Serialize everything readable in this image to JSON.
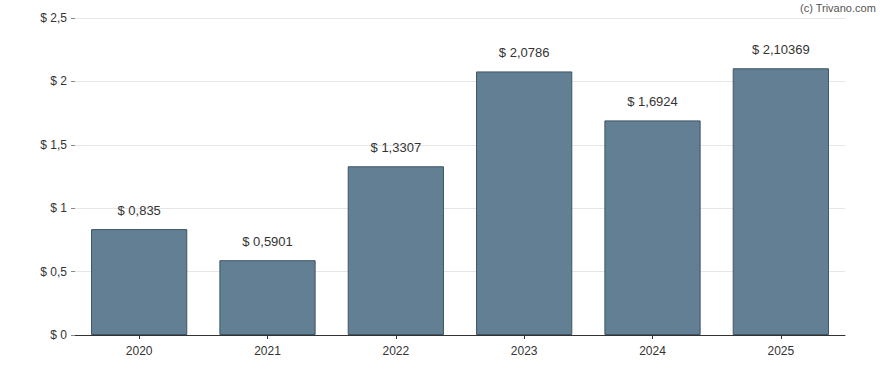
{
  "chart_data": {
    "type": "bar",
    "categories": [
      "2020",
      "2021",
      "2022",
      "2023",
      "2024",
      "2025"
    ],
    "values": [
      0.835,
      0.5901,
      1.3307,
      2.0786,
      1.6924,
      2.10369
    ],
    "value_labels": [
      "$ 0,835",
      "$ 0,5901",
      "$ 1,3307",
      "$ 2,0786",
      "$ 1,6924",
      "$ 2,10369"
    ],
    "data_labels": true,
    "color": "#627f93",
    "ylim": [
      0,
      2.5
    ],
    "yticks": [
      {
        "value": 0,
        "label": "$ 0"
      },
      {
        "value": 0.5,
        "label": "$ 0,5"
      },
      {
        "value": 1,
        "label": "$ 1"
      },
      {
        "value": 1.5,
        "label": "$ 1,5"
      },
      {
        "value": 2,
        "label": "$ 2"
      },
      {
        "value": 2.5,
        "label": "$ 2,5"
      }
    ],
    "grid": true,
    "annotations": [
      "(c) Trivano.com"
    ]
  }
}
